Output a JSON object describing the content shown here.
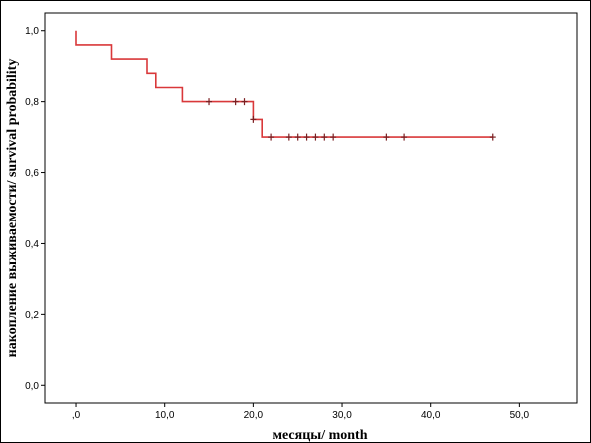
{
  "chart_data": {
    "type": "line",
    "title": "",
    "xlabel": "месяцы/ month",
    "ylabel": "накопление выживаемости/ survival probability",
    "xlim": [
      -3.5,
      56.5
    ],
    "ylim": [
      -0.05,
      1.05
    ],
    "x_ticks": [
      0,
      10,
      20,
      30,
      40,
      50
    ],
    "x_tick_labels": [
      ",0",
      "10,0",
      "20,0",
      "30,0",
      "40,0",
      "50,0"
    ],
    "y_ticks": [
      0,
      0.2,
      0.4,
      0.6,
      0.8,
      1.0
    ],
    "y_tick_labels": [
      "0,0",
      "0,2",
      "0,4",
      "0,6",
      "0,8",
      "1,0"
    ],
    "grid": false,
    "series": [
      {
        "color": "#d9383a",
        "step_x": [
          0,
          0,
          4,
          4,
          8,
          8,
          9,
          9,
          12,
          12,
          20,
          20,
          21,
          21,
          47
        ],
        "step_y": [
          1.0,
          0.96,
          0.96,
          0.92,
          0.92,
          0.88,
          0.88,
          0.84,
          0.84,
          0.8,
          0.8,
          0.75,
          0.75,
          0.7,
          0.7
        ],
        "censored_x": [
          15,
          18,
          19,
          20,
          22,
          24,
          25,
          26,
          27,
          28,
          29,
          35,
          37,
          47
        ],
        "censored_y": [
          0.8,
          0.8,
          0.8,
          0.75,
          0.7,
          0.7,
          0.7,
          0.7,
          0.7,
          0.7,
          0.7,
          0.7,
          0.7,
          0.7
        ]
      }
    ]
  }
}
